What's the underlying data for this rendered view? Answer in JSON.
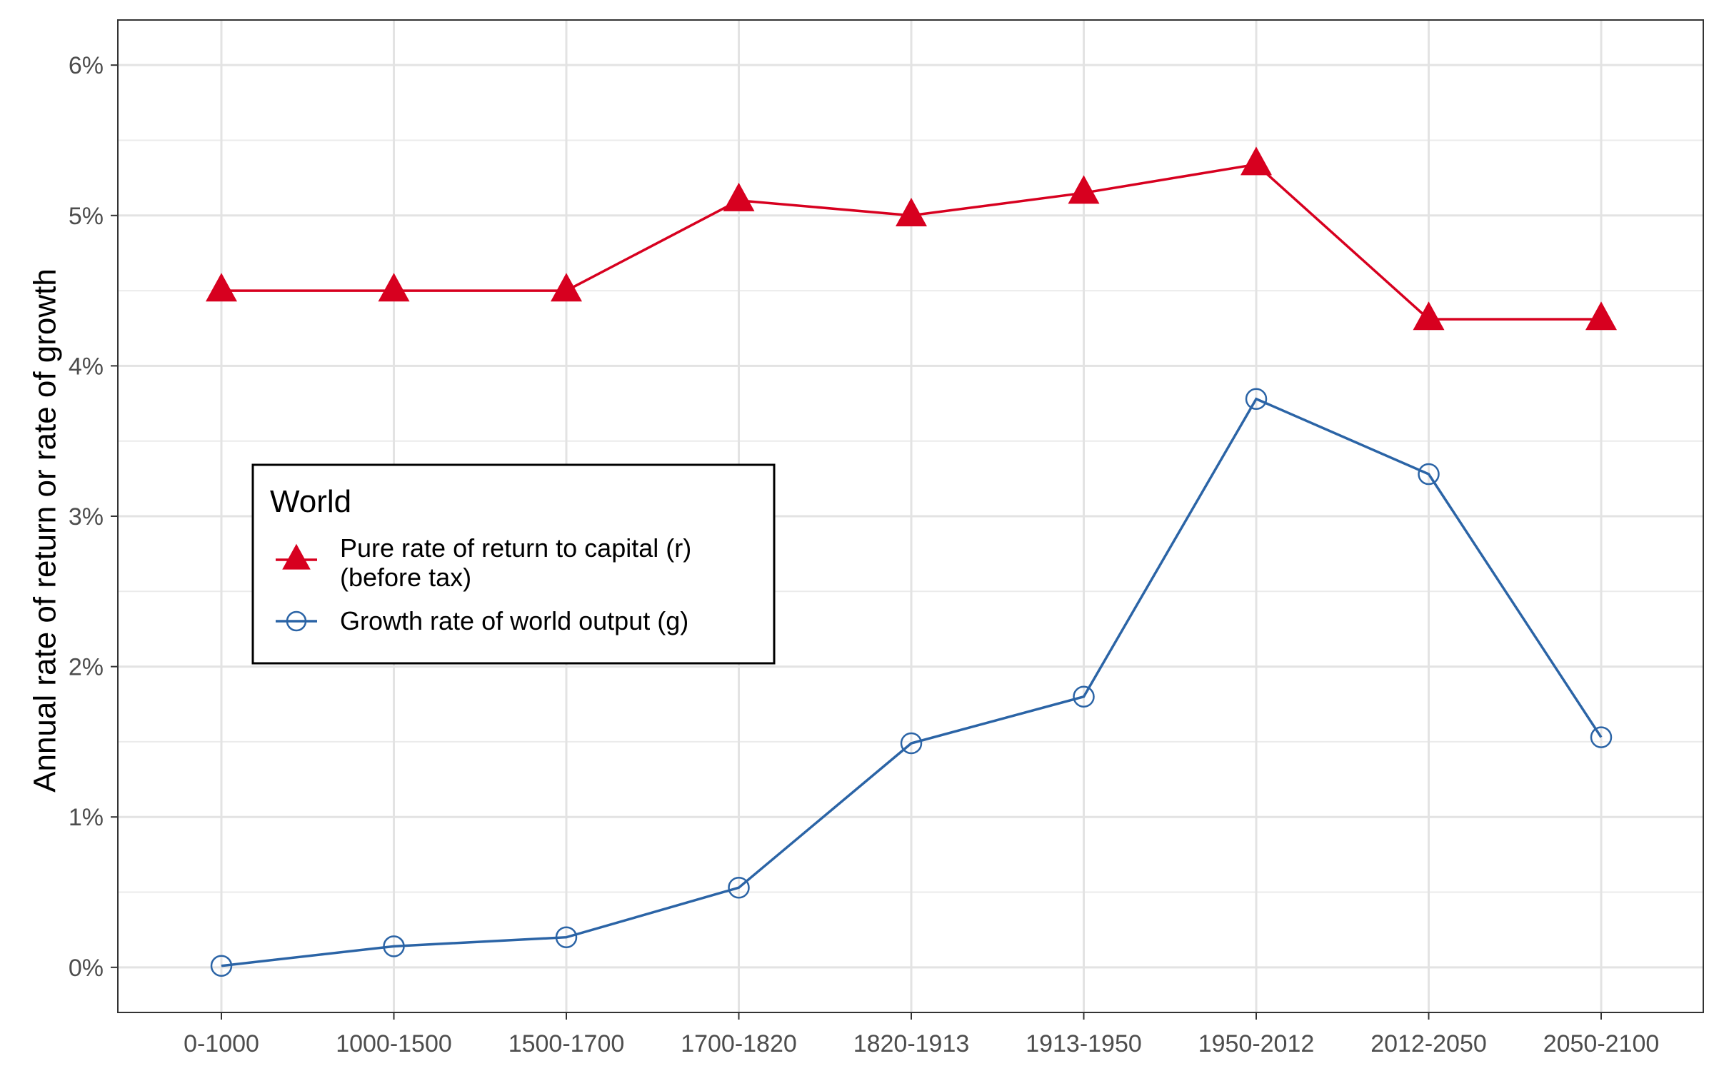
{
  "chart_data": {
    "type": "line",
    "title": "",
    "xlabel": "",
    "ylabel": "Annual rate of return or rate of growth",
    "categories": [
      "0-1000",
      "1000-1500",
      "1500-1700",
      "1700-1820",
      "1820-1913",
      "1913-1950",
      "1950-2012",
      "2012-2050",
      "2050-2100"
    ],
    "ylim": [
      -0.3,
      6.3
    ],
    "yticks": [
      0,
      1,
      2,
      3,
      4,
      5,
      6
    ],
    "ytick_labels": [
      "0%",
      "1%",
      "2%",
      "3%",
      "4%",
      "5%",
      "6%"
    ],
    "grid": true,
    "legend": {
      "title": "World",
      "placement": "middle-left"
    },
    "series": [
      {
        "name": "Pure rate of return to capital (r)\n(before tax)",
        "name_lines": [
          "Pure rate of return to capital (r)",
          "(before tax)"
        ],
        "marker": "triangle",
        "color": "#d7001f",
        "values": [
          4.5,
          4.5,
          4.5,
          5.1,
          5.0,
          5.15,
          5.34,
          4.31,
          4.31
        ]
      },
      {
        "name": "Growth rate of world output (g)",
        "name_lines": [
          "Growth rate of world output (g)"
        ],
        "marker": "open-circle",
        "color": "#2b64a6",
        "values": [
          0.01,
          0.14,
          0.2,
          0.53,
          1.49,
          1.8,
          3.78,
          3.28,
          1.53
        ]
      }
    ]
  }
}
